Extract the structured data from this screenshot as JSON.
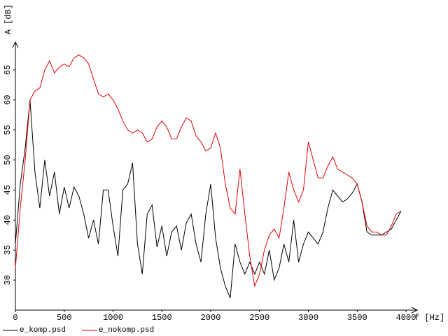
{
  "chart_data": {
    "type": "line",
    "y_label": "A [dB]",
    "x_label": "f [Hz]",
    "x": [
      0,
      50,
      100,
      150,
      200,
      250,
      300,
      350,
      400,
      450,
      500,
      550,
      600,
      650,
      700,
      750,
      800,
      850,
      900,
      950,
      1000,
      1050,
      1100,
      1150,
      1200,
      1250,
      1300,
      1350,
      1400,
      1450,
      1500,
      1550,
      1600,
      1650,
      1700,
      1750,
      1800,
      1850,
      1900,
      1950,
      2000,
      2050,
      2100,
      2150,
      2200,
      2250,
      2300,
      2350,
      2400,
      2450,
      2500,
      2550,
      2600,
      2650,
      2700,
      2750,
      2800,
      2850,
      2900,
      2950,
      3000,
      3050,
      3100,
      3150,
      3200,
      3250,
      3300,
      3350,
      3400,
      3450,
      3500,
      3550,
      3600,
      3650,
      3700,
      3750,
      3800,
      3850,
      3900,
      3950
    ],
    "series": [
      {
        "name": "e_komp.psd",
        "color": "#000000",
        "values": [
          36,
          46,
          52,
          60,
          48,
          42,
          50,
          44,
          48,
          41,
          45.5,
          42,
          45.5,
          44,
          41,
          37,
          40,
          36,
          45,
          45,
          39,
          34,
          45,
          46,
          49.5,
          36,
          31,
          41,
          42.5,
          35.5,
          39,
          34,
          38,
          39,
          35,
          39.5,
          41,
          36,
          33,
          41,
          46,
          37,
          32,
          29,
          27,
          36,
          33,
          31,
          33,
          31,
          33,
          31,
          35,
          30,
          32,
          36,
          33,
          40,
          33,
          36,
          38,
          37,
          36,
          38,
          42,
          45,
          44,
          43,
          43.5,
          44.5,
          46,
          43,
          38,
          37.5,
          37.5,
          37.5,
          38,
          38.5,
          40,
          41.5
        ]
      },
      {
        "name": "e_nokomp.psd",
        "color": "#e00000",
        "values": [
          32,
          42,
          50,
          60,
          61.5,
          62,
          65,
          66.5,
          64.5,
          65.5,
          66,
          65.5,
          67,
          67.5,
          67,
          66,
          63.5,
          61,
          60.5,
          61,
          60,
          58.5,
          56.5,
          55,
          54.5,
          55,
          54.5,
          53,
          53.5,
          55.5,
          56.5,
          55.5,
          53.5,
          53.5,
          55.5,
          57,
          56.5,
          54,
          53,
          51.5,
          52,
          54.5,
          52,
          46,
          42,
          41,
          48.5,
          41,
          34,
          29,
          31,
          35,
          37.5,
          38.5,
          37,
          42,
          48,
          45,
          43,
          45,
          53,
          50,
          47,
          47,
          49,
          50.5,
          48.5,
          48,
          47.5,
          47,
          46,
          43,
          39,
          38,
          38,
          37.5,
          37.5,
          39,
          41,
          41.5
        ]
      }
    ],
    "xlim": [
      0,
      4000
    ],
    "ylim": [
      25,
      70
    ],
    "xticks": [
      0,
      500,
      1000,
      1500,
      2000,
      2500,
      3000,
      3500,
      4000
    ],
    "yticks": [
      30,
      35,
      40,
      45,
      50,
      55,
      60,
      65
    ]
  }
}
